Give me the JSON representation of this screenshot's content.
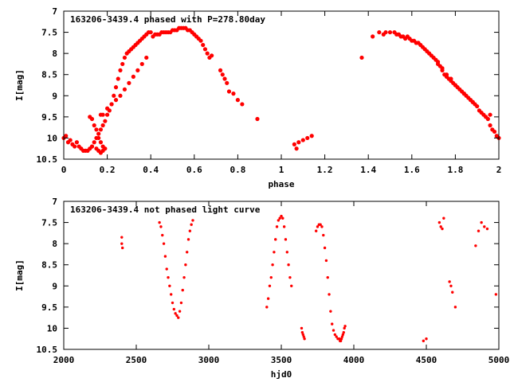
{
  "chart_data": [
    {
      "type": "scatter",
      "title": "163206-3439.4 phased with P=278.80day",
      "xlabel": "phase",
      "ylabel": "I[mag]",
      "xlim": [
        0,
        2
      ],
      "ylim": [
        10.5,
        7
      ],
      "xticks": [
        0,
        0.2,
        0.4,
        0.6,
        0.8,
        1,
        1.2,
        1.4,
        1.6,
        1.8,
        2
      ],
      "xtick_labels": [
        "0",
        "0.2",
        "0.4",
        "0.6",
        "0.8",
        "1",
        "1.2",
        "1.4",
        "1.6",
        "1.8",
        "2"
      ],
      "yticks": [
        7,
        7.5,
        8,
        8.5,
        9,
        9.5,
        10,
        10.5
      ],
      "ytick_labels": [
        "7",
        "7.5",
        "8",
        "8.5",
        "9",
        "9.5",
        "10",
        "10.5"
      ],
      "color": "#ff0000",
      "series": [
        {
          "x": [
            0.0,
            0.01,
            0.02,
            0.03,
            0.04,
            0.05,
            0.06,
            0.07,
            0.08,
            0.09,
            0.1,
            0.11,
            0.12,
            0.13,
            0.14,
            0.15,
            0.16,
            0.17,
            0.18,
            0.19,
            0.2,
            0.21,
            0.22,
            0.23,
            0.24,
            0.25,
            0.26,
            0.27,
            0.28,
            0.29,
            0.3,
            0.31,
            0.32,
            0.33,
            0.34,
            0.35,
            0.36,
            0.37,
            0.38,
            0.39,
            0.4,
            0.41,
            0.42,
            0.43,
            0.44,
            0.45,
            0.46,
            0.47,
            0.48,
            0.49,
            0.5,
            0.51,
            0.52,
            0.53,
            0.54,
            0.55,
            0.56,
            0.57,
            0.58,
            0.59,
            0.6,
            0.61,
            0.62,
            0.63,
            0.64,
            0.65,
            0.66,
            0.67,
            0.68,
            0.72,
            0.73,
            0.74,
            0.75,
            0.76,
            0.78,
            0.8,
            0.82,
            0.89,
            0.17,
            0.18,
            0.2,
            0.22,
            0.24,
            0.26,
            0.28,
            0.3,
            0.32,
            0.34,
            0.36,
            0.38,
            0.12,
            0.13,
            0.14,
            0.15,
            0.16,
            0.17,
            0.18,
            0.19,
            0.18,
            0.17,
            0.16,
            0.15,
            0.13,
            1.06,
            1.07,
            1.08,
            1.1,
            1.12,
            1.14,
            1.37,
            1.42,
            1.45,
            1.47,
            1.48,
            1.5,
            1.52,
            1.53,
            1.54,
            1.55,
            1.56,
            1.57,
            1.58,
            1.59,
            1.6,
            1.61,
            1.62,
            1.63,
            1.64,
            1.65,
            1.66,
            1.67,
            1.68,
            1.69,
            1.7,
            1.71,
            1.72,
            1.73,
            1.74,
            1.75,
            1.76,
            1.77,
            1.78,
            1.79,
            1.8,
            1.81,
            1.82,
            1.83,
            1.84,
            1.85,
            1.86,
            1.87,
            1.88,
            1.89,
            1.9,
            1.91,
            1.92,
            1.93,
            1.94,
            1.95,
            1.96,
            1.97,
            1.98,
            1.99,
            2.0,
            1.72,
            1.74,
            1.76,
            1.78,
            1.8,
            1.84,
            1.88,
            1.96
          ],
          "y": [
            10.0,
            9.95,
            10.1,
            10.05,
            10.15,
            10.2,
            10.1,
            10.2,
            10.25,
            10.3,
            10.3,
            10.3,
            10.25,
            10.2,
            10.1,
            10.0,
            9.9,
            9.8,
            9.7,
            9.6,
            9.45,
            9.35,
            9.2,
            9.0,
            8.8,
            8.6,
            8.4,
            8.25,
            8.1,
            8.0,
            7.95,
            7.9,
            7.85,
            7.8,
            7.75,
            7.7,
            7.65,
            7.6,
            7.55,
            7.5,
            7.5,
            7.6,
            7.55,
            7.55,
            7.55,
            7.5,
            7.5,
            7.5,
            7.5,
            7.5,
            7.45,
            7.45,
            7.45,
            7.4,
            7.4,
            7.4,
            7.4,
            7.45,
            7.45,
            7.5,
            7.55,
            7.6,
            7.65,
            7.7,
            7.8,
            7.9,
            8.0,
            8.1,
            8.05,
            8.4,
            8.5,
            8.6,
            8.7,
            8.9,
            8.95,
            9.1,
            9.2,
            9.55,
            9.45,
            9.45,
            9.3,
            9.2,
            9.1,
            9.0,
            8.85,
            8.7,
            8.55,
            8.4,
            8.25,
            8.1,
            9.5,
            9.55,
            9.7,
            9.8,
            10.0,
            10.1,
            10.2,
            10.25,
            10.3,
            10.35,
            10.3,
            10.25,
            10.2,
            10.15,
            10.25,
            10.1,
            10.05,
            10.0,
            9.95,
            8.1,
            7.6,
            7.5,
            7.55,
            7.5,
            7.5,
            7.5,
            7.55,
            7.55,
            7.6,
            7.6,
            7.65,
            7.6,
            7.65,
            7.7,
            7.7,
            7.75,
            7.75,
            7.8,
            7.85,
            7.9,
            7.95,
            8.0,
            8.05,
            8.1,
            8.15,
            8.25,
            8.3,
            8.4,
            8.5,
            8.55,
            8.6,
            8.65,
            8.7,
            8.75,
            8.8,
            8.85,
            8.9,
            8.95,
            9.0,
            9.05,
            9.1,
            9.15,
            9.2,
            9.25,
            9.35,
            9.4,
            9.45,
            9.5,
            9.55,
            9.7,
            9.8,
            9.85,
            9.95,
            10.0,
            8.2,
            8.35,
            8.5,
            8.6,
            8.75,
            8.95,
            9.15,
            9.45
          ]
        }
      ]
    },
    {
      "type": "scatter",
      "title": "163206-3439.4 not phased light curve",
      "xlabel": "hjd0",
      "ylabel": "I[mag]",
      "xlim": [
        2000,
        5000
      ],
      "ylim": [
        10.5,
        7
      ],
      "xticks": [
        2000,
        2500,
        3000,
        3500,
        4000,
        4500,
        5000
      ],
      "xtick_labels": [
        "2000",
        "2500",
        "3000",
        "3500",
        "4000",
        "4500",
        "5000"
      ],
      "yticks": [
        7,
        7.5,
        8,
        8.5,
        9,
        9.5,
        10,
        10.5
      ],
      "ytick_labels": [
        "7",
        "7.5",
        "8",
        "8.5",
        "9",
        "9.5",
        "10",
        "10.5"
      ],
      "color": "#ff0000",
      "series": [
        {
          "x": [
            2400,
            2400,
            2405,
            2660,
            2670,
            2680,
            2690,
            2700,
            2710,
            2720,
            2730,
            2740,
            2750,
            2760,
            2770,
            2780,
            2790,
            2800,
            2810,
            2820,
            2830,
            2840,
            2850,
            2860,
            2870,
            2880,
            2890,
            3400,
            3410,
            3420,
            3430,
            3440,
            3450,
            3460,
            3470,
            3480,
            3490,
            3500,
            3510,
            3520,
            3530,
            3540,
            3550,
            3560,
            3570,
            3640,
            3645,
            3650,
            3655,
            3660,
            3740,
            3750,
            3760,
            3770,
            3780,
            3790,
            3800,
            3810,
            3820,
            3830,
            3840,
            3850,
            3860,
            3870,
            3880,
            3890,
            3900,
            3905,
            3910,
            3915,
            3920,
            3925,
            3930,
            3935,
            3940,
            4480,
            4500,
            4590,
            4600,
            4610,
            4620,
            4660,
            4670,
            4680,
            4700,
            4840,
            4860,
            4880,
            4900,
            4920,
            4980
          ],
          "y": [
            7.85,
            8.0,
            8.1,
            7.5,
            7.6,
            7.8,
            8.0,
            8.3,
            8.6,
            8.8,
            9.0,
            9.2,
            9.4,
            9.55,
            9.65,
            9.7,
            9.75,
            9.6,
            9.4,
            9.1,
            8.8,
            8.5,
            8.2,
            7.9,
            7.7,
            7.55,
            7.45,
            9.5,
            9.3,
            9.0,
            8.8,
            8.5,
            8.2,
            7.9,
            7.6,
            7.45,
            7.4,
            7.35,
            7.4,
            7.6,
            7.9,
            8.2,
            8.5,
            8.8,
            9.0,
            10.0,
            10.1,
            10.15,
            10.2,
            10.25,
            7.7,
            7.6,
            7.55,
            7.55,
            7.6,
            7.8,
            8.1,
            8.4,
            8.8,
            9.2,
            9.6,
            9.9,
            10.05,
            10.15,
            10.2,
            10.25,
            10.25,
            10.3,
            10.3,
            10.25,
            10.2,
            10.15,
            10.1,
            10.0,
            9.95,
            10.3,
            10.25,
            7.5,
            7.6,
            7.65,
            7.4,
            8.9,
            9.0,
            9.15,
            9.5,
            8.05,
            7.7,
            7.5,
            7.6,
            7.65,
            9.2
          ]
        }
      ]
    }
  ]
}
